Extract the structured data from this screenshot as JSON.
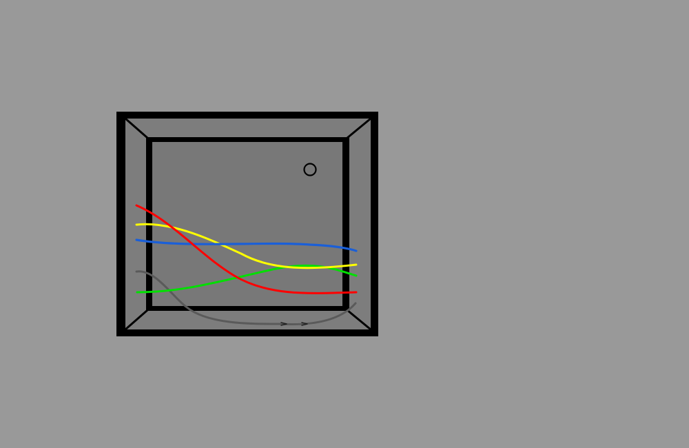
{
  "scene": {
    "background_color": "#999999",
    "box": {
      "outer_color": "#000000",
      "panel_color": "#7d7d7d",
      "inner_color": "#787878"
    },
    "hole_icon": "circle-hole-icon",
    "wires": [
      {
        "name": "red-wire",
        "color": "#ff0000"
      },
      {
        "name": "yellow-wire",
        "color": "#ffff00"
      },
      {
        "name": "blue-wire",
        "color": "#1a5fd8"
      },
      {
        "name": "green-wire",
        "color": "#00e000"
      },
      {
        "name": "gray-wire",
        "color": "#5a5a5a"
      }
    ]
  }
}
